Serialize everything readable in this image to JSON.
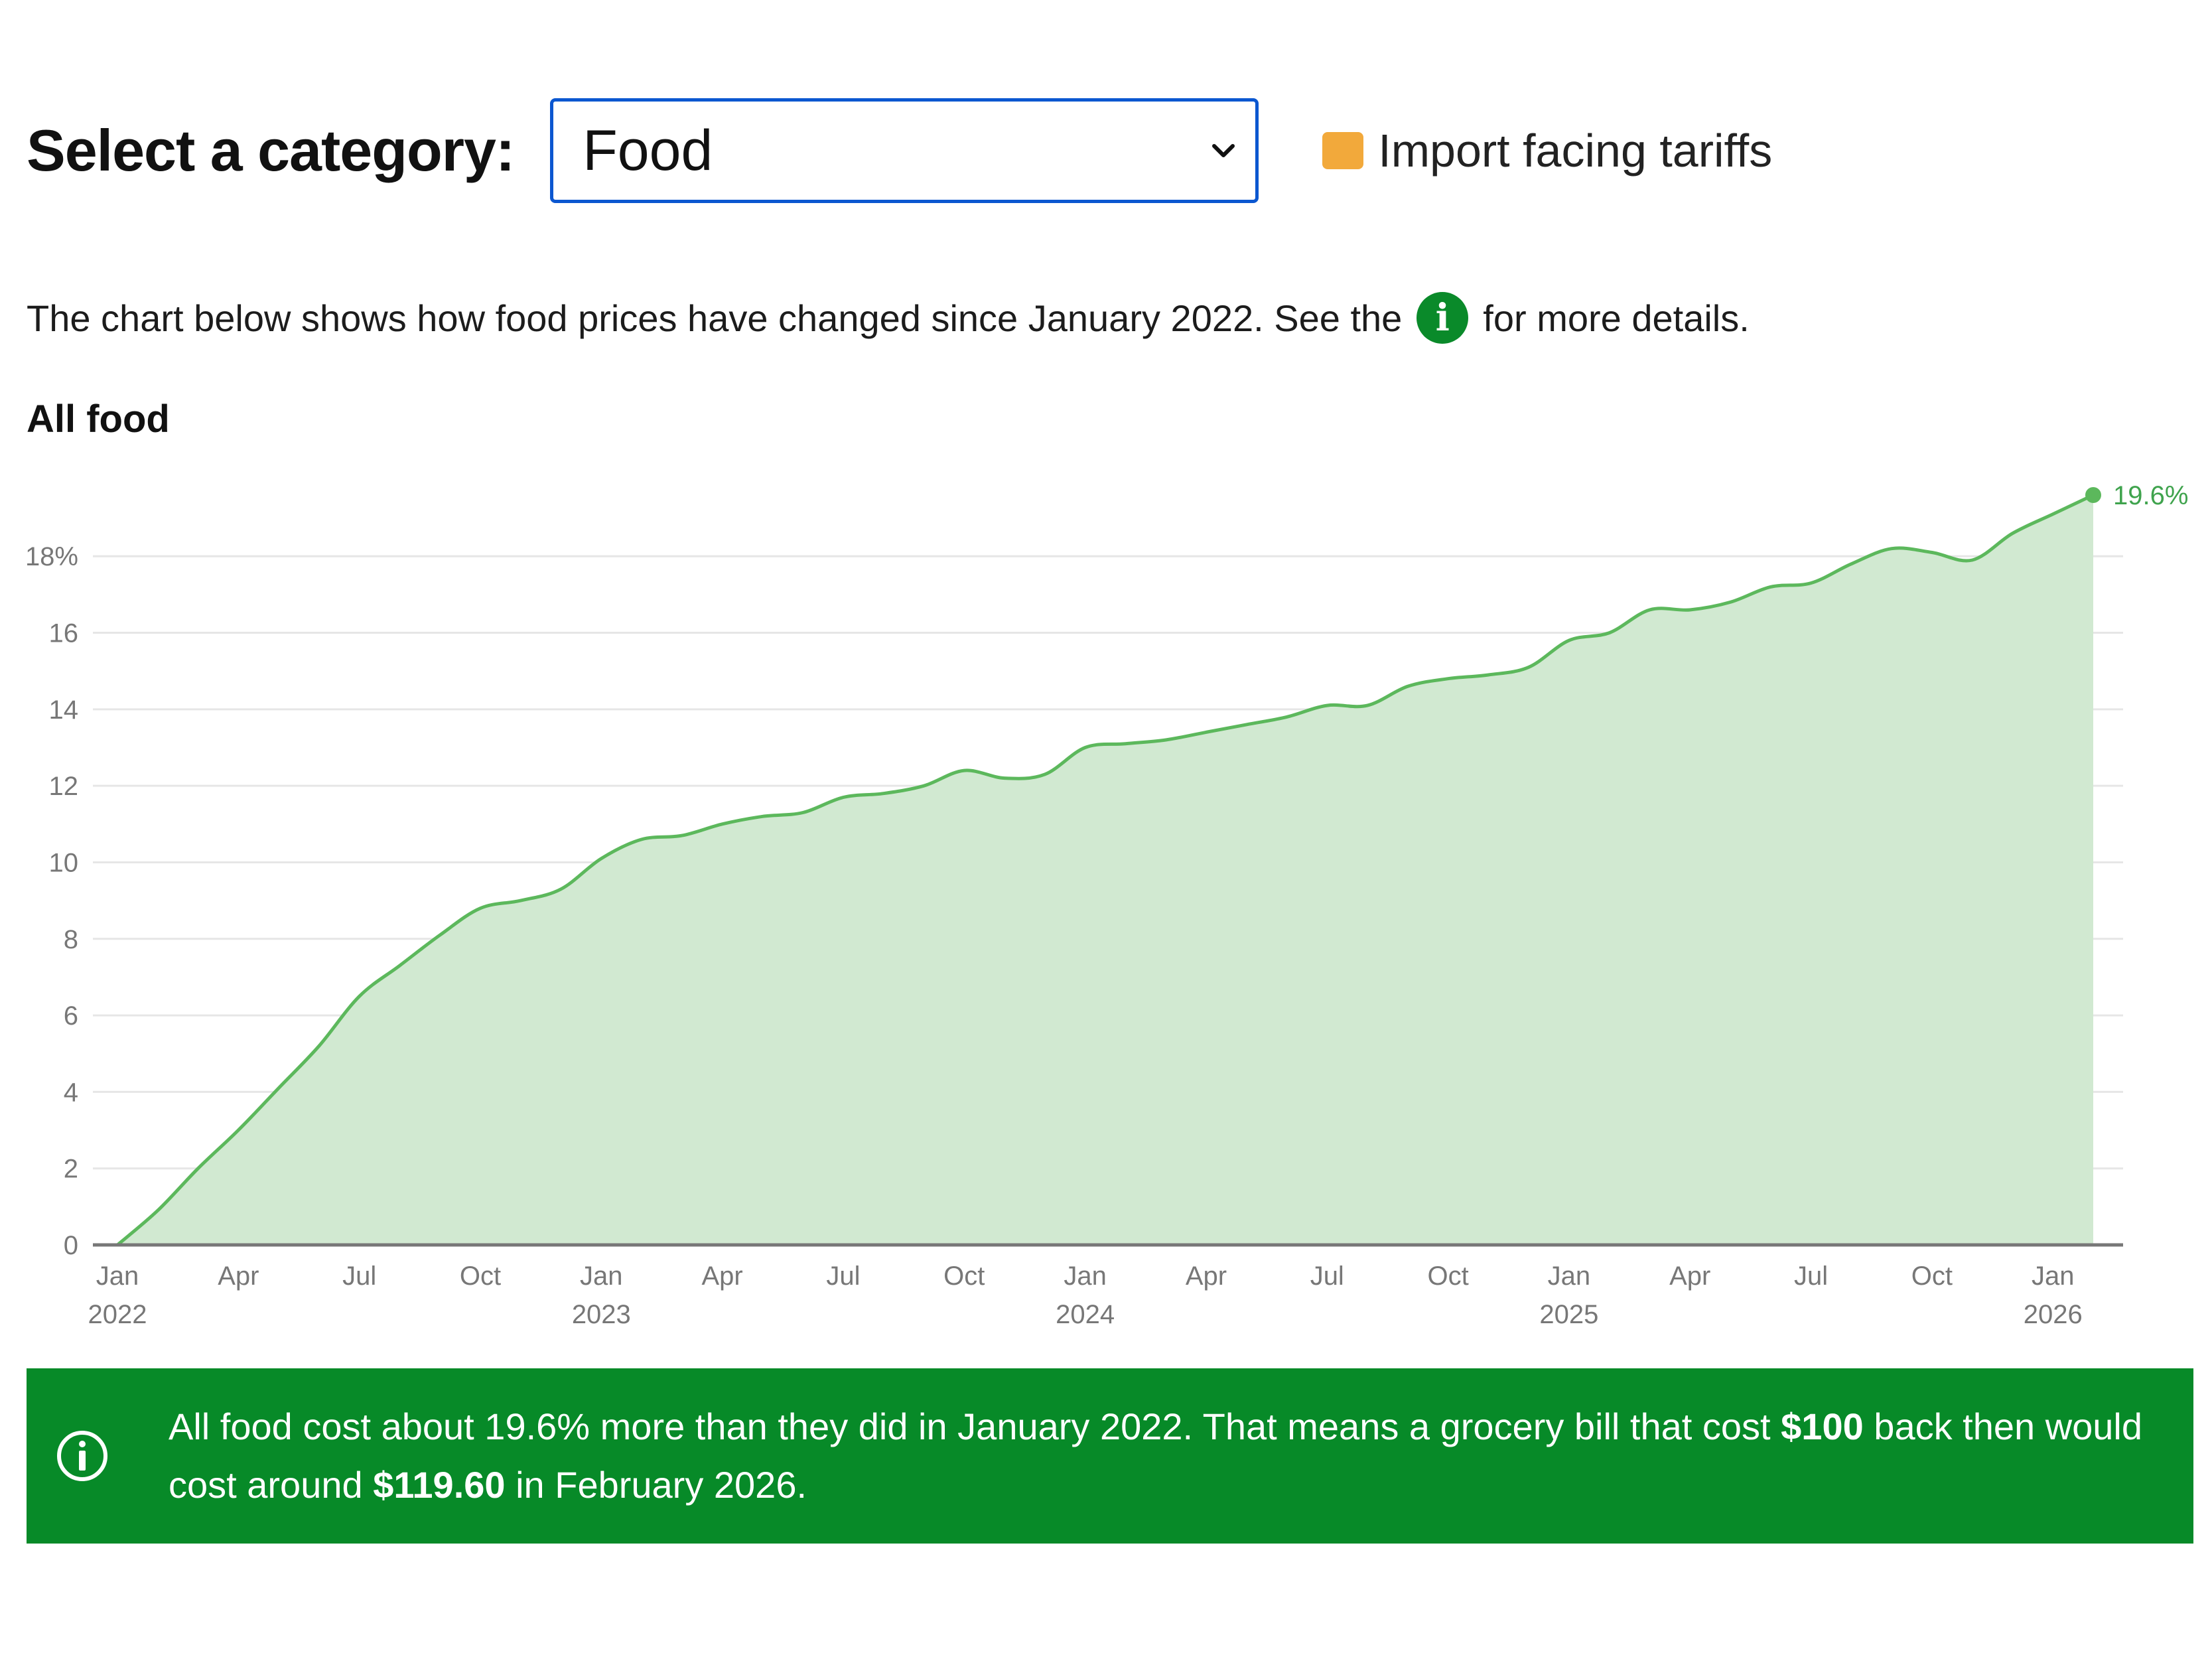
{
  "controls": {
    "select_label": "Select a category:",
    "selected_category": "Food",
    "legend_label": "Import facing tariffs",
    "legend_color": "#f2a93b"
  },
  "description": {
    "before": "The chart below shows how food prices have changed since January 2022. See the",
    "info_glyph": "i",
    "after": "for more details."
  },
  "chart_data": {
    "type": "area",
    "title": "All food",
    "color": "#5cb85c",
    "fill_color": "#d1e9d1",
    "x_unit": "month",
    "x": [
      "2022-01",
      "2022-02",
      "2022-03",
      "2022-04",
      "2022-05",
      "2022-06",
      "2022-07",
      "2022-08",
      "2022-09",
      "2022-10",
      "2022-11",
      "2022-12",
      "2023-01",
      "2023-02",
      "2023-03",
      "2023-04",
      "2023-05",
      "2023-06",
      "2023-07",
      "2023-08",
      "2023-09",
      "2023-10",
      "2023-11",
      "2023-12",
      "2024-01",
      "2024-02",
      "2024-03",
      "2024-04",
      "2024-05",
      "2024-06",
      "2024-07",
      "2024-08",
      "2024-09",
      "2024-10",
      "2024-11",
      "2024-12",
      "2025-01",
      "2025-02",
      "2025-03",
      "2025-04",
      "2025-05",
      "2025-06",
      "2025-07",
      "2025-08",
      "2025-09",
      "2025-10",
      "2025-11",
      "2025-12",
      "2026-01",
      "2026-02"
    ],
    "series": [
      {
        "values": [
          0,
          0.9,
          2.0,
          3.0,
          4.1,
          5.2,
          6.5,
          7.3,
          8.1,
          8.8,
          9.0,
          9.3,
          10.1,
          10.6,
          10.7,
          11.0,
          11.2,
          11.3,
          11.7,
          11.8,
          12.0,
          12.4,
          12.2,
          12.3,
          13.0,
          13.1,
          13.2,
          13.4,
          13.6,
          13.8,
          14.1,
          14.1,
          14.6,
          14.8,
          14.9,
          15.1,
          15.8,
          16.0,
          16.6,
          16.6,
          16.8,
          17.2,
          17.3,
          17.8,
          18.2,
          18.1,
          17.9,
          18.6,
          19.1,
          19.6
        ]
      }
    ],
    "y_ticks": [
      0,
      2,
      4,
      6,
      8,
      10,
      12,
      14,
      16,
      18
    ],
    "y_tick_labels": [
      "0",
      "2",
      "4",
      "6",
      "8",
      "10",
      "12",
      "14",
      "16",
      "18%"
    ],
    "ylim": [
      0,
      19.6
    ],
    "x_ticks": [
      {
        "month": "2022-01",
        "label": "Jan",
        "year": "2022"
      },
      {
        "month": "2022-04",
        "label": "Apr",
        "year": ""
      },
      {
        "month": "2022-07",
        "label": "Jul",
        "year": ""
      },
      {
        "month": "2022-10",
        "label": "Oct",
        "year": ""
      },
      {
        "month": "2023-01",
        "label": "Jan",
        "year": "2023"
      },
      {
        "month": "2023-04",
        "label": "Apr",
        "year": ""
      },
      {
        "month": "2023-07",
        "label": "Jul",
        "year": ""
      },
      {
        "month": "2023-10",
        "label": "Oct",
        "year": ""
      },
      {
        "month": "2024-01",
        "label": "Jan",
        "year": "2024"
      },
      {
        "month": "2024-04",
        "label": "Apr",
        "year": ""
      },
      {
        "month": "2024-07",
        "label": "Jul",
        "year": ""
      },
      {
        "month": "2024-10",
        "label": "Oct",
        "year": ""
      },
      {
        "month": "2025-01",
        "label": "Jan",
        "year": "2025"
      },
      {
        "month": "2025-04",
        "label": "Apr",
        "year": ""
      },
      {
        "month": "2025-07",
        "label": "Jul",
        "year": ""
      },
      {
        "month": "2025-10",
        "label": "Oct",
        "year": ""
      },
      {
        "month": "2026-01",
        "label": "Jan",
        "year": "2026"
      }
    ],
    "end_label": "19.6%",
    "grid": true
  },
  "banner": {
    "part1": "All food cost about 19.6% more than they did in January 2022. That means a grocery bill that cost ",
    "amount_then": "$100",
    "part2": " back then would cost around ",
    "amount_now": "$119.60",
    "part3": " in February 2026."
  }
}
